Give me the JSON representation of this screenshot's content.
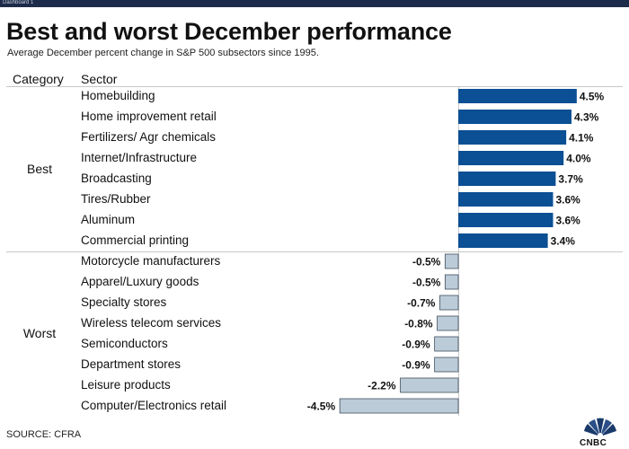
{
  "window": {
    "tab_label": "Dashboard 1"
  },
  "header": {
    "title": "Best and worst December performance",
    "subtitle": "Average December percent change in S&P 500 subsectors since 1995."
  },
  "columns": {
    "category": "Category",
    "sector": "Sector"
  },
  "groups": {
    "best": "Best",
    "worst": "Worst"
  },
  "footer": {
    "source": "SOURCE: CFRA"
  },
  "brand": {
    "name": "CNBC",
    "icon": "cnbc-peacock-icon"
  },
  "colors": {
    "best_bar": "#0b4f94",
    "worst_bar": "#bccbd8"
  },
  "chart_data": {
    "type": "bar",
    "orientation": "horizontal",
    "categories": [
      "Homebuilding",
      "Home improvement retail",
      "Fertilizers/ Agr chemicals",
      "Internet/Infrastructure",
      "Broadcasting",
      "Tires/Rubber",
      "Aluminum",
      "Commercial printing",
      "Motorcycle manufacturers",
      "Apparel/Luxury goods",
      "Specialty stores",
      "Wireless telecom services",
      "Semiconductors",
      "Department stores",
      "Leisure products",
      "Computer/Electronics retail"
    ],
    "group_of": [
      "Best",
      "Best",
      "Best",
      "Best",
      "Best",
      "Best",
      "Best",
      "Best",
      "Worst",
      "Worst",
      "Worst",
      "Worst",
      "Worst",
      "Worst",
      "Worst",
      "Worst"
    ],
    "values": [
      4.5,
      4.3,
      4.1,
      4.0,
      3.7,
      3.6,
      3.6,
      3.4,
      -0.5,
      -0.5,
      -0.7,
      -0.8,
      -0.9,
      -0.9,
      -2.2,
      -4.5
    ],
    "value_labels": [
      "4.5%",
      "4.3%",
      "4.1%",
      "4.0%",
      "3.7%",
      "3.6%",
      "3.6%",
      "3.4%",
      "-0.5%",
      "-0.5%",
      "-0.7%",
      "-0.8%",
      "-0.9%",
      "-0.9%",
      "-2.2%",
      "-4.5%"
    ],
    "title": "Best and worst December performance",
    "xlabel": "",
    "ylabel": "",
    "grid": false,
    "legend": "none"
  }
}
